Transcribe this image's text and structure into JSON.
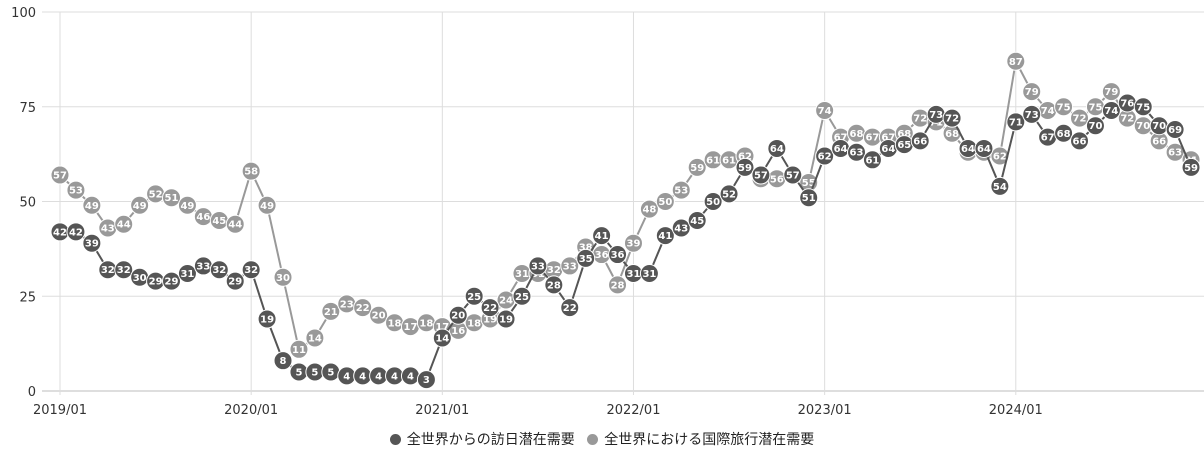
{
  "chart_data": {
    "type": "line",
    "title": "",
    "xlabel": "",
    "ylabel": "",
    "ylim": [
      0,
      100
    ],
    "yticks": [
      0,
      25,
      50,
      75,
      100
    ],
    "xtick_labels": [
      "2019/01",
      "2020/01",
      "2021/01",
      "2022/01",
      "2023/01",
      "2024/01"
    ],
    "x_start": "2019/01",
    "x_end": "2024/12",
    "grid": true,
    "legend_position": "bottom",
    "series": [
      {
        "name": "全世界からの訪日潜在需要",
        "color": "#555555",
        "values": [
          42,
          42,
          39,
          32,
          32,
          30,
          29,
          29,
          31,
          33,
          32,
          29,
          32,
          19,
          8,
          5,
          5,
          5,
          4,
          4,
          4,
          4,
          4,
          3,
          14,
          20,
          25,
          22,
          19,
          25,
          33,
          28,
          22,
          35,
          41,
          36,
          31,
          31,
          41,
          43,
          45,
          50,
          52,
          59,
          57,
          64,
          57,
          51,
          62,
          64,
          63,
          61,
          64,
          65,
          66,
          73,
          72,
          64,
          64,
          54,
          71,
          73,
          67,
          68,
          66,
          70,
          74,
          76,
          75,
          70,
          69,
          59
        ]
      },
      {
        "name": "全世界における国際旅行潜在需要",
        "color": "#999999",
        "values": [
          57,
          53,
          49,
          43,
          44,
          49,
          52,
          51,
          49,
          46,
          45,
          44,
          58,
          49,
          30,
          11,
          14,
          21,
          23,
          22,
          20,
          18,
          17,
          18,
          17,
          16,
          18,
          19,
          24,
          31,
          31,
          32,
          33,
          38,
          36,
          28,
          39,
          48,
          50,
          53,
          59,
          61,
          61,
          62,
          56,
          56,
          57,
          55,
          74,
          67,
          68,
          67,
          67,
          68,
          72,
          71,
          68,
          63,
          63,
          62,
          87,
          79,
          74,
          75,
          72,
          75,
          79,
          72,
          70,
          66,
          63,
          61
        ]
      }
    ]
  }
}
